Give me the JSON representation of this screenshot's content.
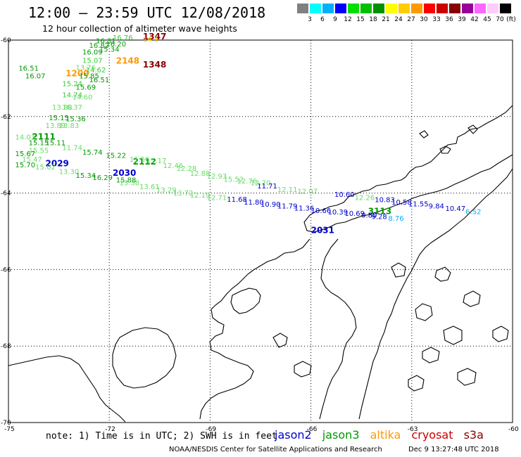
{
  "header": {
    "title": "12:00 – 23:59 UTC 12/08/2018",
    "subtitle": "12 hour collection of altimeter wave heights"
  },
  "colorbar": {
    "unit": "(ft)",
    "levels": [
      {
        "color": "#808080",
        "label": "3"
      },
      {
        "color": "#00ffff",
        "label": "6"
      },
      {
        "color": "#00b0ff",
        "label": "9"
      },
      {
        "color": "#0000ff",
        "label": "12"
      },
      {
        "color": "#00e000",
        "label": "15"
      },
      {
        "color": "#00c000",
        "label": "18"
      },
      {
        "color": "#009000",
        "label": "21"
      },
      {
        "color": "#ffff00",
        "label": "24"
      },
      {
        "color": "#ffcc00",
        "label": "27"
      },
      {
        "color": "#ff9900",
        "label": "30"
      },
      {
        "color": "#ff0000",
        "label": "33"
      },
      {
        "color": "#cc0000",
        "label": "36"
      },
      {
        "color": "#880000",
        "label": "39"
      },
      {
        "color": "#990099",
        "label": "42"
      },
      {
        "color": "#ff66ff",
        "label": "45"
      },
      {
        "color": "#ffccff",
        "label": "70"
      },
      {
        "color": "#000000",
        "label": ""
      }
    ]
  },
  "map": {
    "lat_labels": [
      "-60",
      "-62",
      "-64",
      "-66",
      "-68",
      "-70"
    ],
    "lon_labels": [
      "-75",
      "-72",
      "-69",
      "-66",
      "-63",
      "-60"
    ],
    "lon_range": [
      -75,
      -60
    ],
    "lat_range": [
      -60,
      -70
    ]
  },
  "satellites": {
    "jason2": {
      "name": "jason2",
      "color": "#0000cc"
    },
    "jason3": {
      "name": "jason3",
      "color": "#009900"
    },
    "altika": {
      "name": "altika",
      "color": "#ff9900"
    },
    "cryosat": {
      "name": "cryosat",
      "color": "#cc0000"
    },
    "s3a": {
      "name": "s3a",
      "color": "#880000"
    }
  },
  "time_labels": [
    {
      "text": "1347",
      "lon": -71.0,
      "lat": -59.98,
      "color": "#880000"
    },
    {
      "text": "1348",
      "lon": -71.0,
      "lat": -60.72,
      "color": "#880000"
    },
    {
      "text": "2148",
      "lon": -71.8,
      "lat": -60.62,
      "color": "#ff9900"
    },
    {
      "text": "1200",
      "lon": -73.3,
      "lat": -60.95,
      "color": "#ff9900"
    },
    {
      "text": "2111",
      "lon": -74.3,
      "lat": -62.6,
      "color": "#009900"
    },
    {
      "text": "2112",
      "lon": -71.3,
      "lat": -63.25,
      "color": "#009900"
    },
    {
      "text": "2029",
      "lon": -73.9,
      "lat": -63.3,
      "color": "#0000cc"
    },
    {
      "text": "2030",
      "lon": -71.9,
      "lat": -63.55,
      "color": "#0000cc"
    },
    {
      "text": "2031",
      "lon": -66.0,
      "lat": -65.05,
      "color": "#0000cc"
    },
    {
      "text": "3113",
      "lon": -64.3,
      "lat": -64.55,
      "color": "#009900"
    }
  ],
  "measurements": [
    {
      "v": "16.76",
      "lon": -71.9,
      "lat": -60.0,
      "c": "#33cc33"
    },
    {
      "v": "14.1",
      "lon": -71.0,
      "lat": -60.05,
      "c": "#ffcc00"
    },
    {
      "v": "16.31",
      "lon": -72.4,
      "lat": -60.08,
      "c": "#009900"
    },
    {
      "v": "16.20",
      "lon": -72.1,
      "lat": -60.17,
      "c": "#009900"
    },
    {
      "v": "16.82",
      "lon": -72.6,
      "lat": -60.2,
      "c": "#009900"
    },
    {
      "v": "15.34",
      "lon": -72.3,
      "lat": -60.3,
      "c": "#009900"
    },
    {
      "v": "16.09",
      "lon": -72.8,
      "lat": -60.38,
      "c": "#009900"
    },
    {
      "v": "15.07",
      "lon": -72.8,
      "lat": -60.6,
      "c": "#33cc33"
    },
    {
      "v": "13.76",
      "lon": -73.0,
      "lat": -60.78,
      "c": "#66dd66"
    },
    {
      "v": "14.62",
      "lon": -72.7,
      "lat": -60.85,
      "c": "#33cc33"
    },
    {
      "v": "16.51",
      "lon": -74.7,
      "lat": -60.8,
      "c": "#009900"
    },
    {
      "v": "16.07",
      "lon": -74.5,
      "lat": -61.0,
      "c": "#009900"
    },
    {
      "v": "15.85",
      "lon": -72.9,
      "lat": -61.0,
      "c": "#009900"
    },
    {
      "v": "16.51",
      "lon": -72.6,
      "lat": -61.1,
      "c": "#009900"
    },
    {
      "v": "15.24",
      "lon": -73.4,
      "lat": -61.2,
      "c": "#33cc33"
    },
    {
      "v": "15.69",
      "lon": -73.0,
      "lat": -61.3,
      "c": "#009900"
    },
    {
      "v": "14.74",
      "lon": -73.4,
      "lat": -61.5,
      "c": "#33cc33"
    },
    {
      "v": "14.60",
      "lon": -73.1,
      "lat": -61.55,
      "c": "#66dd66"
    },
    {
      "v": "13.88",
      "lon": -73.7,
      "lat": -61.82,
      "c": "#66dd66"
    },
    {
      "v": "16.37",
      "lon": -73.4,
      "lat": -61.82,
      "c": "#66dd66"
    },
    {
      "v": "15.15",
      "lon": -73.8,
      "lat": -62.1,
      "c": "#009900"
    },
    {
      "v": "15.36",
      "lon": -73.3,
      "lat": -62.12,
      "c": "#009900"
    },
    {
      "v": "13.89",
      "lon": -73.9,
      "lat": -62.3,
      "c": "#66dd66"
    },
    {
      "v": "13.83",
      "lon": -73.5,
      "lat": -62.3,
      "c": "#66dd66"
    },
    {
      "v": "14.03",
      "lon": -74.8,
      "lat": -62.6,
      "c": "#66dd66"
    },
    {
      "v": "15.15",
      "lon": -74.4,
      "lat": -62.75,
      "c": "#009900"
    },
    {
      "v": "15.11",
      "lon": -73.9,
      "lat": -62.75,
      "c": "#009900"
    },
    {
      "v": "15.55",
      "lon": -74.4,
      "lat": -62.95,
      "c": "#66dd66"
    },
    {
      "v": "11.74",
      "lon": -73.4,
      "lat": -62.88,
      "c": "#66dd66"
    },
    {
      "v": "15.74",
      "lon": -72.8,
      "lat": -63.0,
      "c": "#009900"
    },
    {
      "v": "15.67",
      "lon": -74.8,
      "lat": -63.03,
      "c": "#009900"
    },
    {
      "v": "15.22",
      "lon": -72.1,
      "lat": -63.08,
      "c": "#009900"
    },
    {
      "v": "15.47",
      "lon": -74.6,
      "lat": -63.18,
      "c": "#66dd66"
    },
    {
      "v": "11.56",
      "lon": -71.4,
      "lat": -63.18,
      "c": "#66dd66"
    },
    {
      "v": "15.17",
      "lon": -70.9,
      "lat": -63.22,
      "c": "#66dd66"
    },
    {
      "v": "15.70",
      "lon": -74.8,
      "lat": -63.33,
      "c": "#009900"
    },
    {
      "v": "15.02",
      "lon": -74.2,
      "lat": -63.38,
      "c": "#66dd66"
    },
    {
      "v": "12.46",
      "lon": -70.4,
      "lat": -63.35,
      "c": "#66dd66"
    },
    {
      "v": "12.28",
      "lon": -70.0,
      "lat": -63.42,
      "c": "#66dd66"
    },
    {
      "v": "13.30",
      "lon": -73.5,
      "lat": -63.5,
      "c": "#66dd66"
    },
    {
      "v": "12.88",
      "lon": -69.6,
      "lat": -63.55,
      "c": "#66dd66"
    },
    {
      "v": "15.34",
      "lon": -73.0,
      "lat": -63.6,
      "c": "#009900"
    },
    {
      "v": "12.93",
      "lon": -69.1,
      "lat": -63.62,
      "c": "#66dd66"
    },
    {
      "v": "16.29",
      "lon": -72.5,
      "lat": -63.66,
      "c": "#009900"
    },
    {
      "v": "15.52",
      "lon": -68.6,
      "lat": -63.7,
      "c": "#66dd66"
    },
    {
      "v": "12.76",
      "lon": -68.2,
      "lat": -63.75,
      "c": "#66dd66"
    },
    {
      "v": "15.88",
      "lon": -71.8,
      "lat": -63.72,
      "c": "#009900"
    },
    {
      "v": "12.70",
      "lon": -67.8,
      "lat": -63.8,
      "c": "#66dd66"
    },
    {
      "v": "13.38",
      "lon": -71.7,
      "lat": -63.8,
      "c": "#66dd66"
    },
    {
      "v": "11.71",
      "lon": -67.6,
      "lat": -63.88,
      "c": "#0000cc"
    },
    {
      "v": "13.61",
      "lon": -71.1,
      "lat": -63.9,
      "c": "#66dd66"
    },
    {
      "v": "12.11",
      "lon": -67.0,
      "lat": -63.97,
      "c": "#66dd66"
    },
    {
      "v": "13.29",
      "lon": -70.6,
      "lat": -63.98,
      "c": "#66dd66"
    },
    {
      "v": "12.07",
      "lon": -66.4,
      "lat": -64.02,
      "c": "#66dd66"
    },
    {
      "v": "13.72",
      "lon": -70.1,
      "lat": -64.06,
      "c": "#66dd66"
    },
    {
      "v": "10.60",
      "lon": -65.3,
      "lat": -64.1,
      "c": "#0000cc"
    },
    {
      "v": "12.19",
      "lon": -69.6,
      "lat": -64.12,
      "c": "#66dd66"
    },
    {
      "v": "12.26",
      "lon": -64.7,
      "lat": -64.18,
      "c": "#66dd66"
    },
    {
      "v": "12.71",
      "lon": -69.1,
      "lat": -64.18,
      "c": "#66dd66"
    },
    {
      "v": "11.68",
      "lon": -68.5,
      "lat": -64.23,
      "c": "#0000cc"
    },
    {
      "v": "10.83",
      "lon": -64.1,
      "lat": -64.24,
      "c": "#0000cc"
    },
    {
      "v": "11.80",
      "lon": -68.0,
      "lat": -64.3,
      "c": "#0000cc"
    },
    {
      "v": "10.58",
      "lon": -63.6,
      "lat": -64.3,
      "c": "#0000cc"
    },
    {
      "v": "10.90",
      "lon": -67.5,
      "lat": -64.36,
      "c": "#0000cc"
    },
    {
      "v": "11.55",
      "lon": -63.1,
      "lat": -64.35,
      "c": "#0000cc"
    },
    {
      "v": "11.79",
      "lon": -67.0,
      "lat": -64.4,
      "c": "#0000cc"
    },
    {
      "v": "9.84",
      "lon": -62.5,
      "lat": -64.4,
      "c": "#0000cc"
    },
    {
      "v": "11.36",
      "lon": -66.5,
      "lat": -64.46,
      "c": "#0000cc"
    },
    {
      "v": "10.47",
      "lon": -62.0,
      "lat": -64.47,
      "c": "#0000cc"
    },
    {
      "v": "10.66",
      "lon": -66.0,
      "lat": -64.52,
      "c": "#0000cc"
    },
    {
      "v": "6.52",
      "lon": -61.4,
      "lat": -64.55,
      "c": "#00b0ff"
    },
    {
      "v": "10.39",
      "lon": -65.5,
      "lat": -64.56,
      "c": "#0000cc"
    },
    {
      "v": "10.69",
      "lon": -65.0,
      "lat": -64.6,
      "c": "#0000cc"
    },
    {
      "v": "9.80",
      "lon": -64.5,
      "lat": -64.64,
      "c": "#0000cc"
    },
    {
      "v": "9.28",
      "lon": -64.2,
      "lat": -64.68,
      "c": "#0000cc"
    },
    {
      "v": "8.76",
      "lon": -63.7,
      "lat": -64.72,
      "c": "#00b0ff"
    }
  ],
  "note": "note:  1) Time is in UTC; 2) SWH is in feet",
  "footer": {
    "credit": "NOAA/NESDIS Center for Satellite Applications and Research",
    "timestamp": "Dec  9 13:27:48 UTC 2018"
  }
}
